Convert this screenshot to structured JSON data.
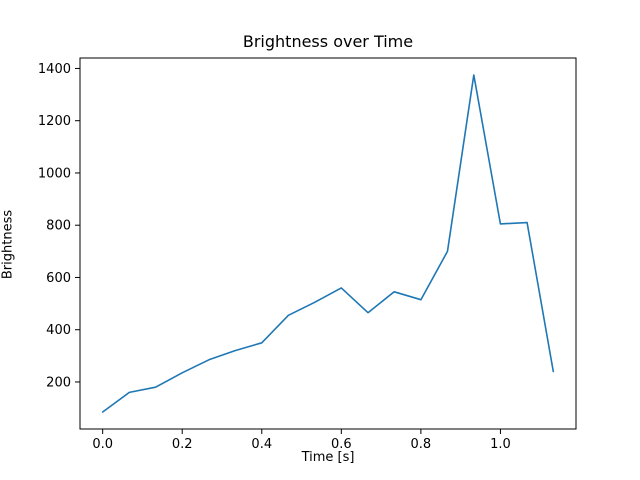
{
  "chart_data": {
    "type": "line",
    "title": "Brightness over Time",
    "xlabel": "Time [s]",
    "ylabel": "Brightness",
    "line_color": "#1f77b4",
    "axis_color": "#000000",
    "background_color": "#ffffff",
    "xlim": [
      -0.057,
      1.19
    ],
    "ylim": [
      20,
      1440
    ],
    "xticks": {
      "values": [
        0.0,
        0.2,
        0.4,
        0.6,
        0.8,
        1.0
      ],
      "labels": [
        "0.0",
        "0.2",
        "0.4",
        "0.6",
        "0.8",
        "1.0"
      ]
    },
    "yticks": {
      "values": [
        200,
        400,
        600,
        800,
        1000,
        1200,
        1400
      ],
      "labels": [
        "200",
        "400",
        "600",
        "800",
        "1000",
        "1200",
        "1400"
      ]
    },
    "x": [
      0.0,
      0.067,
      0.133,
      0.2,
      0.267,
      0.333,
      0.4,
      0.467,
      0.533,
      0.6,
      0.667,
      0.733,
      0.8,
      0.867,
      0.933,
      1.0,
      1.067,
      1.133
    ],
    "y": [
      85,
      160,
      180,
      235,
      285,
      320,
      350,
      455,
      505,
      560,
      465,
      545,
      515,
      700,
      1375,
      805,
      810,
      240
    ],
    "grid": false,
    "legend": null
  }
}
